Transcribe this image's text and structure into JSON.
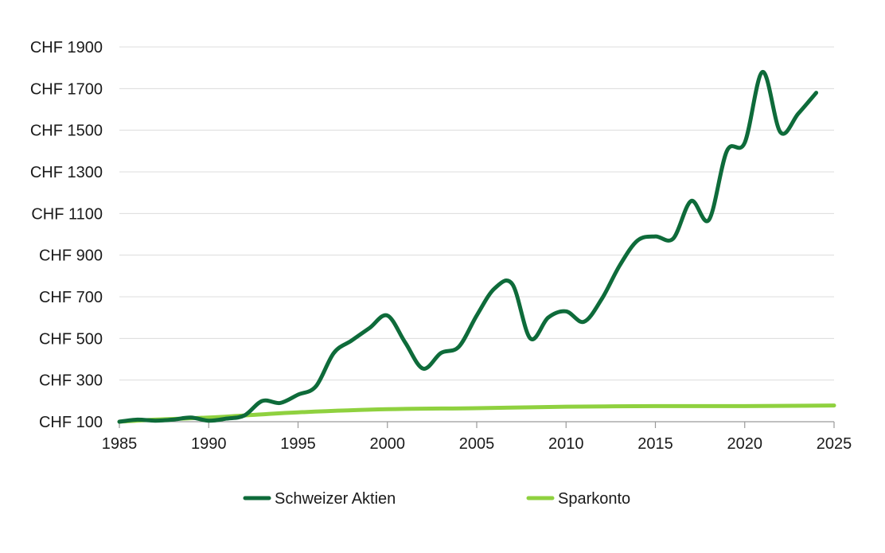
{
  "chart_data": {
    "type": "line",
    "title": "",
    "xlabel": "",
    "ylabel": "",
    "xlim": [
      1985,
      2025
    ],
    "ylim": [
      100,
      1900
    ],
    "x_ticks": [
      1985,
      1990,
      1995,
      2000,
      2005,
      2010,
      2015,
      2020,
      2025
    ],
    "y_ticks": [
      100,
      300,
      500,
      700,
      900,
      1100,
      1300,
      1500,
      1700,
      1900
    ],
    "y_tick_prefix": "CHF ",
    "grid": "horizontal",
    "legend": "bottom",
    "series": [
      {
        "name": "Schweizer Aktien",
        "color": "#0e6b3a",
        "x": [
          1985,
          1986,
          1987,
          1988,
          1989,
          1990,
          1991,
          1992,
          1993,
          1994,
          1995,
          1996,
          1997,
          1998,
          1999,
          2000,
          2001,
          2002,
          2003,
          2004,
          2005,
          2006,
          2007,
          2008,
          2009,
          2010,
          2011,
          2012,
          2013,
          2014,
          2015,
          2016,
          2017,
          2018,
          2019,
          2020,
          2021,
          2022,
          2023,
          2024
        ],
        "values": [
          100,
          110,
          105,
          110,
          120,
          105,
          115,
          130,
          200,
          190,
          230,
          270,
          430,
          490,
          550,
          610,
          480,
          355,
          430,
          460,
          610,
          740,
          760,
          500,
          600,
          630,
          580,
          690,
          850,
          970,
          990,
          980,
          1160,
          1070,
          1400,
          1440,
          1780,
          1490,
          1580,
          1680
        ]
      },
      {
        "name": "Sparkonto",
        "color": "#8fd13f",
        "x": [
          1985,
          1987,
          1990,
          1992,
          1995,
          2000,
          2005,
          2010,
          2015,
          2020,
          2025
        ],
        "values": [
          100,
          110,
          120,
          130,
          145,
          160,
          165,
          172,
          175,
          175,
          178
        ]
      }
    ]
  }
}
